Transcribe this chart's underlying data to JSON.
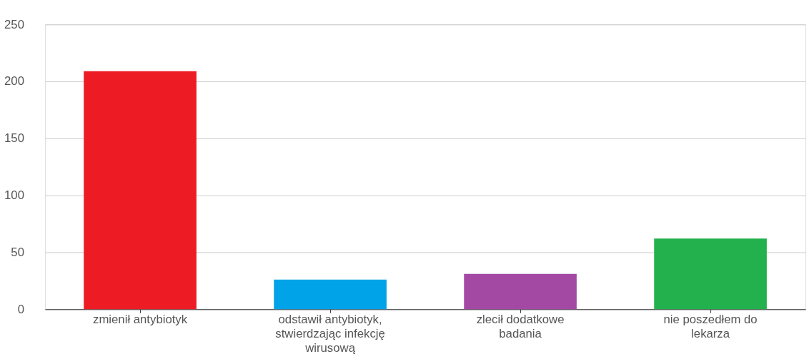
{
  "chart_data": {
    "type": "bar",
    "categories": [
      "zmienił antybiotyk",
      "odstawił antybiotyk, stwierdzając infekcję wirusową",
      "zlecił dodatkowe badania",
      "nie poszedłem do lekarza"
    ],
    "values": [
      209,
      26,
      31,
      62
    ],
    "colors": [
      "#ed1c24",
      "#00a2e8",
      "#a349a4",
      "#22b14c"
    ],
    "ylim": [
      0,
      250
    ],
    "yticks": [
      0,
      50,
      100,
      150,
      200,
      250
    ],
    "grid": "y"
  }
}
